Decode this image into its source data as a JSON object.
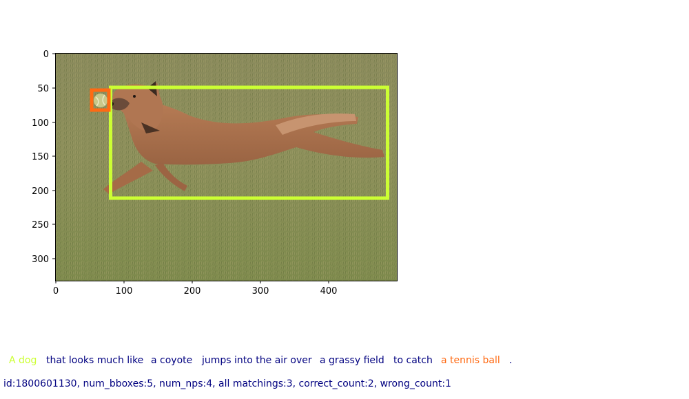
{
  "plot": {
    "x_ticks": [
      "0",
      "100",
      "200",
      "300",
      "400"
    ],
    "y_ticks": [
      "0",
      "50",
      "100",
      "150",
      "200",
      "250",
      "300"
    ],
    "boxes": [
      {
        "label": "dog",
        "color": "#ccff33"
      },
      {
        "label": "tennis ball",
        "color": "#ff6a13"
      }
    ]
  },
  "caption": {
    "segments": [
      {
        "text": "A dog",
        "color": "#ccff33"
      },
      {
        "text": "that looks much like",
        "color": "#000080"
      },
      {
        "text": "a coyote",
        "color": "#000080"
      },
      {
        "text": "jumps into the air over",
        "color": "#000080"
      },
      {
        "text": "a grassy field",
        "color": "#000080"
      },
      {
        "text": "to catch",
        "color": "#000080"
      },
      {
        "text": "a tennis ball",
        "color": "#ff6a13"
      },
      {
        "text": ".",
        "color": "#000080"
      }
    ]
  },
  "info": {
    "text": "id:1800601130, num_bboxes:5, num_nps:4, all matchings:3, correct_count:2, wrong_count:1"
  }
}
